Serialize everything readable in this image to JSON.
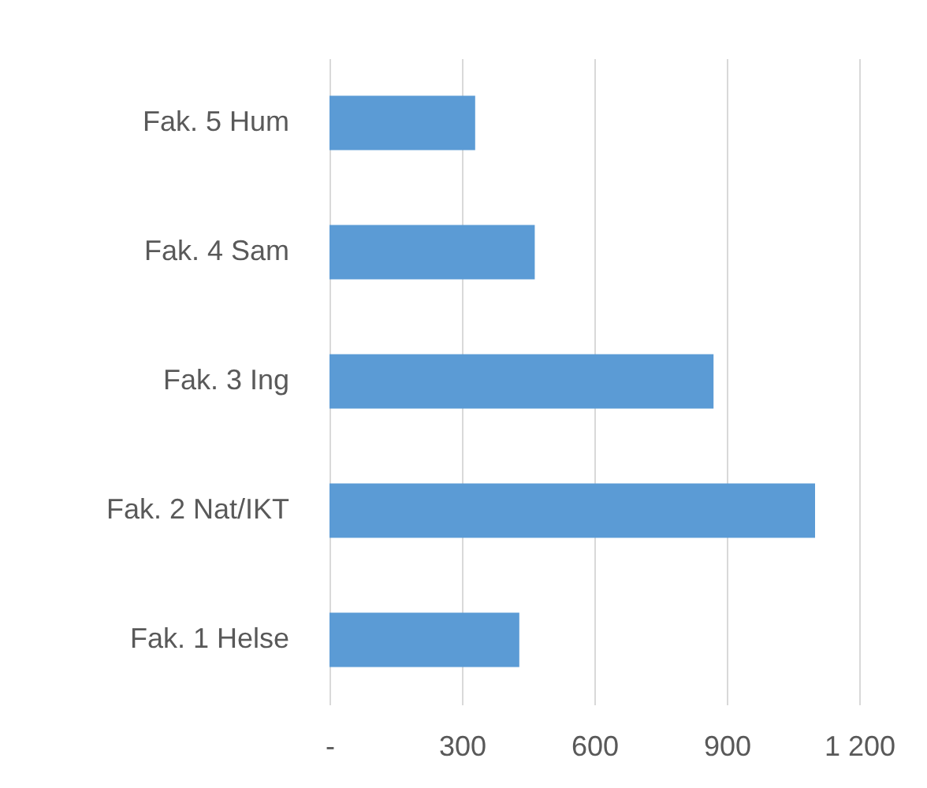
{
  "chart_data": {
    "type": "bar",
    "orientation": "horizontal",
    "categories": [
      "Fak. 5 Hum",
      "Fak. 4 Sam",
      "Fak. 3 Ing",
      "Fak. 2 Nat/IKT",
      "Fak. 1 Helse"
    ],
    "values": [
      330,
      465,
      870,
      1100,
      430
    ],
    "color": "#5b9bd5",
    "xlim": [
      0,
      1200
    ],
    "xticks": [
      {
        "value": 0,
        "label": "-"
      },
      300,
      600,
      900,
      {
        "value": 1200,
        "label": "1 200"
      }
    ],
    "grid": "x"
  }
}
